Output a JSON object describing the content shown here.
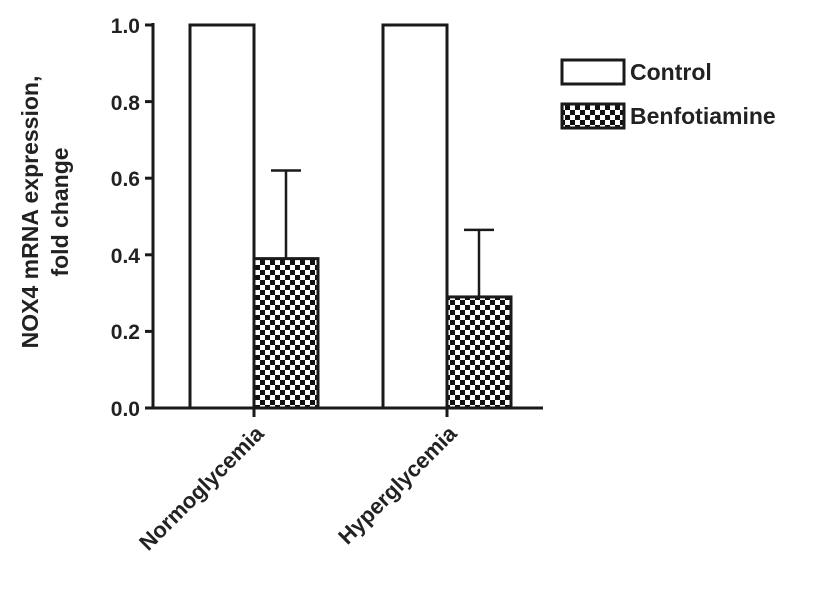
{
  "chart_data": {
    "type": "bar",
    "categories": [
      "Normoglycemia",
      "Hyperglycemia"
    ],
    "series": [
      {
        "name": "Control",
        "values": [
          1.0,
          1.0
        ],
        "errors": [
          0,
          0
        ],
        "fill": "#ffffff"
      },
      {
        "name": "Benfotiamine",
        "values": [
          0.39,
          0.29
        ],
        "errors": [
          0.23,
          0.175
        ],
        "fill": "checkerboard"
      }
    ],
    "ylabel_lines": [
      "NOX4 mRNA expression,",
      "fold change"
    ],
    "ylim": [
      0,
      1.0
    ],
    "yticks": [
      "0.0",
      "0.2",
      "0.4",
      "0.6",
      "0.8",
      "1.0"
    ],
    "legend_position": "top-right",
    "grid": false,
    "colors": {
      "ink": "#1a1a1a",
      "control_fill": "#ffffff"
    }
  }
}
